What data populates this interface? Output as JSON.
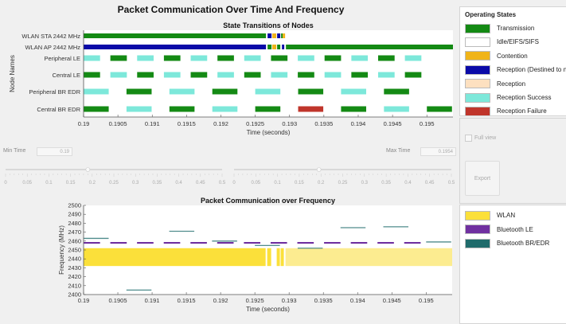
{
  "title": "Packet Communication Over Time And Frequency",
  "colors": {
    "transmission": "#148a14",
    "idle": "#ffffff",
    "contention": "#f0b418",
    "reception_dest": "#0a0aa8",
    "reception": "#fde0c0",
    "reception_success": "#7de8da",
    "reception_failure": "#c0352b",
    "wlan": "#fbe03a",
    "wlan_light": "#fcec90",
    "ble": "#7030a0",
    "bredr": "#1f6b6b"
  },
  "chart_data": [
    {
      "type": "timeline",
      "title": "State Transitions of Nodes",
      "xlabel": "Time (seconds)",
      "ylabel": "Node Names",
      "xlim": [
        0.19,
        0.19538
      ],
      "xticks": [
        "0.19",
        "0.1905",
        "0.191",
        "0.1915",
        "0.192",
        "0.1925",
        "0.193",
        "0.1935",
        "0.194",
        "0.1945",
        "0.195"
      ],
      "nodes": [
        {
          "name": "WLAN STA 2442 MHz",
          "segments": [
            [
              0.19,
              0.192657,
              "transmission"
            ],
            [
              0.19268,
              0.192738,
              "reception_dest"
            ],
            [
              0.192749,
              0.192807,
              "contention"
            ],
            [
              0.192819,
              0.192865,
              "reception_dest"
            ],
            [
              0.192877,
              0.1929,
              "transmission"
            ],
            [
              0.1929,
              0.192935,
              "contention"
            ]
          ]
        },
        {
          "name": "WLAN AP 2442 MHz",
          "segments": [
            [
              0.19,
              0.192657,
              "reception_dest"
            ],
            [
              0.19268,
              0.192738,
              "transmission"
            ],
            [
              0.192749,
              0.192807,
              "contention"
            ],
            [
              0.192819,
              0.192865,
              "transmission"
            ],
            [
              0.192889,
              0.192923,
              "reception_dest"
            ],
            [
              0.192947,
              0.19538,
              "transmission"
            ]
          ]
        },
        {
          "name": "Peripheral LE",
          "segments": [
            [
              0.19,
              0.19024,
              "reception_success"
            ],
            [
              0.19039,
              0.19063,
              "transmission"
            ],
            [
              0.19078,
              0.19102,
              "reception_success"
            ],
            [
              0.19117,
              0.19141,
              "transmission"
            ],
            [
              0.19156,
              0.1918,
              "reception_success"
            ],
            [
              0.19195,
              0.19219,
              "transmission"
            ],
            [
              0.19234,
              0.19258,
              "reception_success"
            ],
            [
              0.19273,
              0.19297,
              "transmission"
            ],
            [
              0.19312,
              0.19336,
              "reception_success"
            ],
            [
              0.19351,
              0.19375,
              "transmission"
            ],
            [
              0.1939,
              0.19414,
              "reception_success"
            ],
            [
              0.19429,
              0.19453,
              "transmission"
            ],
            [
              0.19468,
              0.19492,
              "reception_success"
            ]
          ]
        },
        {
          "name": "Central LE",
          "segments": [
            [
              0.19,
              0.19024,
              "transmission"
            ],
            [
              0.19039,
              0.19063,
              "reception_success"
            ],
            [
              0.19078,
              0.19102,
              "transmission"
            ],
            [
              0.19117,
              0.19141,
              "reception_success"
            ],
            [
              0.19156,
              0.1918,
              "transmission"
            ],
            [
              0.19195,
              0.19219,
              "reception_success"
            ],
            [
              0.19234,
              0.19258,
              "transmission"
            ],
            [
              0.19273,
              0.19297,
              "reception_success"
            ],
            [
              0.19312,
              0.19336,
              "transmission"
            ],
            [
              0.19351,
              0.19375,
              "reception_success"
            ],
            [
              0.1939,
              0.19414,
              "transmission"
            ],
            [
              0.19429,
              0.19453,
              "reception_success"
            ],
            [
              0.19468,
              0.19492,
              "transmission"
            ]
          ]
        },
        {
          "name": "Peripheral BR EDR",
          "segments": [
            [
              0.19,
              0.190366,
              "reception_success"
            ],
            [
              0.190625,
              0.190991,
              "transmission"
            ],
            [
              0.19125,
              0.191616,
              "reception_success"
            ],
            [
              0.191875,
              0.192241,
              "transmission"
            ],
            [
              0.1925,
              0.192866,
              "reception_success"
            ],
            [
              0.193125,
              0.193491,
              "transmission"
            ],
            [
              0.19375,
              0.194116,
              "reception_success"
            ],
            [
              0.194375,
              0.194741,
              "transmission"
            ]
          ]
        },
        {
          "name": "Central BR EDR",
          "segments": [
            [
              0.19,
              0.190366,
              "transmission"
            ],
            [
              0.190625,
              0.190991,
              "reception_success"
            ],
            [
              0.19125,
              0.191616,
              "transmission"
            ],
            [
              0.191875,
              0.192241,
              "reception_success"
            ],
            [
              0.1925,
              0.192866,
              "transmission"
            ],
            [
              0.193125,
              0.193491,
              "reception_failure"
            ],
            [
              0.19375,
              0.194116,
              "transmission"
            ],
            [
              0.194375,
              0.194741,
              "reception_success"
            ],
            [
              0.195,
              0.195366,
              "transmission"
            ]
          ]
        }
      ]
    },
    {
      "type": "timeline-frequency",
      "title": "Packet Communication over Frequency",
      "xlabel": "Time (seconds)",
      "ylabel": "Frequency (MHz)",
      "xlim": [
        0.19,
        0.19538
      ],
      "ylim": [
        2400,
        2500
      ],
      "xticks": [
        "0.19",
        "0.1905",
        "0.191",
        "0.1915",
        "0.192",
        "0.1925",
        "0.193",
        "0.1935",
        "0.194",
        "0.1945",
        "0.195"
      ],
      "yticks": [
        "2400",
        "2410",
        "2420",
        "2430",
        "2440",
        "2450",
        "2460",
        "2470",
        "2480",
        "2490",
        "2500"
      ],
      "wlan": [
        {
          "start": 0.19,
          "end": 0.192657,
          "fmin": 2432,
          "fmax": 2452,
          "shade": "wlan"
        },
        {
          "start": 0.19268,
          "end": 0.192738,
          "fmin": 2432,
          "fmax": 2452,
          "shade": "wlan"
        },
        {
          "start": 0.192819,
          "end": 0.192865,
          "fmin": 2432,
          "fmax": 2452,
          "shade": "wlan"
        },
        {
          "start": 0.192877,
          "end": 0.192923,
          "fmin": 2432,
          "fmax": 2452,
          "shade": "wlan"
        },
        {
          "start": 0.192947,
          "end": 0.19538,
          "fmin": 2432,
          "fmax": 2452,
          "shade": "wlan_light"
        }
      ],
      "ble": {
        "freq": 2458,
        "starts": [
          0.19,
          0.19039,
          0.19078,
          0.19117,
          0.19156,
          0.19195,
          0.19234,
          0.19273,
          0.19312,
          0.19351,
          0.1939,
          0.19429,
          0.19468
        ],
        "duration": 0.00024
      },
      "bredr": [
        {
          "start": 0.19,
          "freq": 2463
        },
        {
          "start": 0.190625,
          "freq": 2405
        },
        {
          "start": 0.19125,
          "freq": 2471
        },
        {
          "start": 0.191875,
          "freq": 2460
        },
        {
          "start": 0.1925,
          "freq": 2455
        },
        {
          "start": 0.193125,
          "freq": 2452
        },
        {
          "start": 0.19375,
          "freq": 2475
        },
        {
          "start": 0.194375,
          "freq": 2476
        },
        {
          "start": 0.195,
          "freq": 2459
        }
      ],
      "bredr_duration": 0.000366
    }
  ],
  "controls": {
    "min_time_label": "Min Time",
    "min_time_value": "0.19",
    "max_time_label": "Max Time",
    "max_time_value": "0.1954",
    "slider_ticks": [
      "0",
      "0.05",
      "0.1",
      "0.15",
      "0.2",
      "0.25",
      "0.3",
      "0.35",
      "0.4",
      "0.45",
      "0.5"
    ],
    "slider_min_value": 0.19,
    "slider_max_value": 0.1954,
    "full_view_label": "Full view",
    "export_label": "Export"
  },
  "states_legend": {
    "title": "Operating States",
    "items": [
      {
        "label": "Transmission",
        "color": "#148a14"
      },
      {
        "label": "Idle/EIFS/SIFS",
        "color": "#ffffff"
      },
      {
        "label": "Contention",
        "color": "#f0b418"
      },
      {
        "label": "Reception (Destined to n",
        "color": "#0a0aa8"
      },
      {
        "label": "Reception",
        "color": "#fde0c0"
      },
      {
        "label": "Reception Success",
        "color": "#7de8da"
      },
      {
        "label": "Reception Failure",
        "color": "#c0352b"
      }
    ]
  },
  "freq_legend": {
    "items": [
      {
        "label": "WLAN",
        "color": "#fbe03a"
      },
      {
        "label": "Bluetooth LE",
        "color": "#7030a0"
      },
      {
        "label": "Bluetooth BR/EDR",
        "color": "#1f6b6b"
      }
    ]
  }
}
